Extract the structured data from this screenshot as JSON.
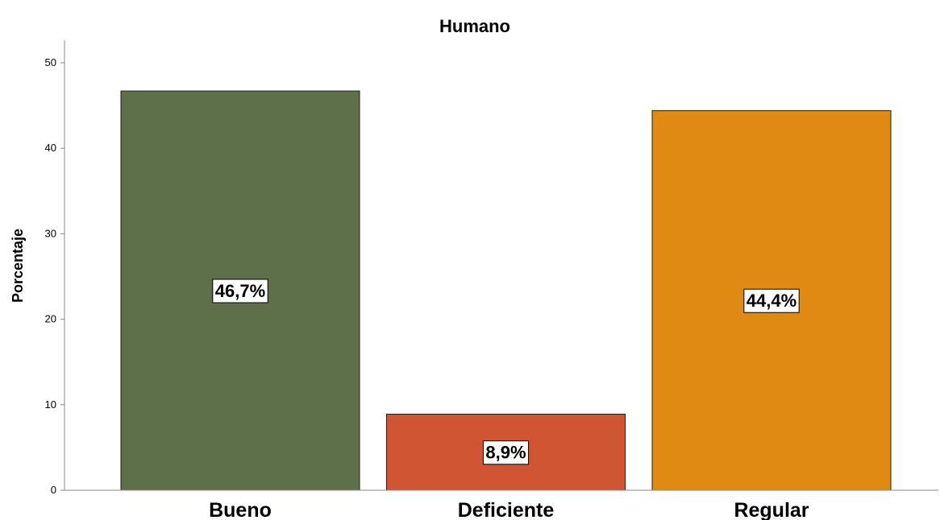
{
  "chart_data": {
    "type": "bar",
    "title": "Humano",
    "xlabel": "",
    "ylabel": "Porcentaje",
    "ylim": [
      0,
      50
    ],
    "yticks": [
      0,
      10,
      20,
      30,
      40,
      50
    ],
    "categories": [
      "Bueno",
      "Deficiente",
      "Regular"
    ],
    "values": [
      46.7,
      8.9,
      44.4
    ],
    "data_labels": [
      "46,7%",
      "8,9%",
      "44,4%"
    ],
    "colors": [
      "#5d7049",
      "#d05533",
      "#e08a14"
    ],
    "grid": false,
    "legend": "none"
  }
}
